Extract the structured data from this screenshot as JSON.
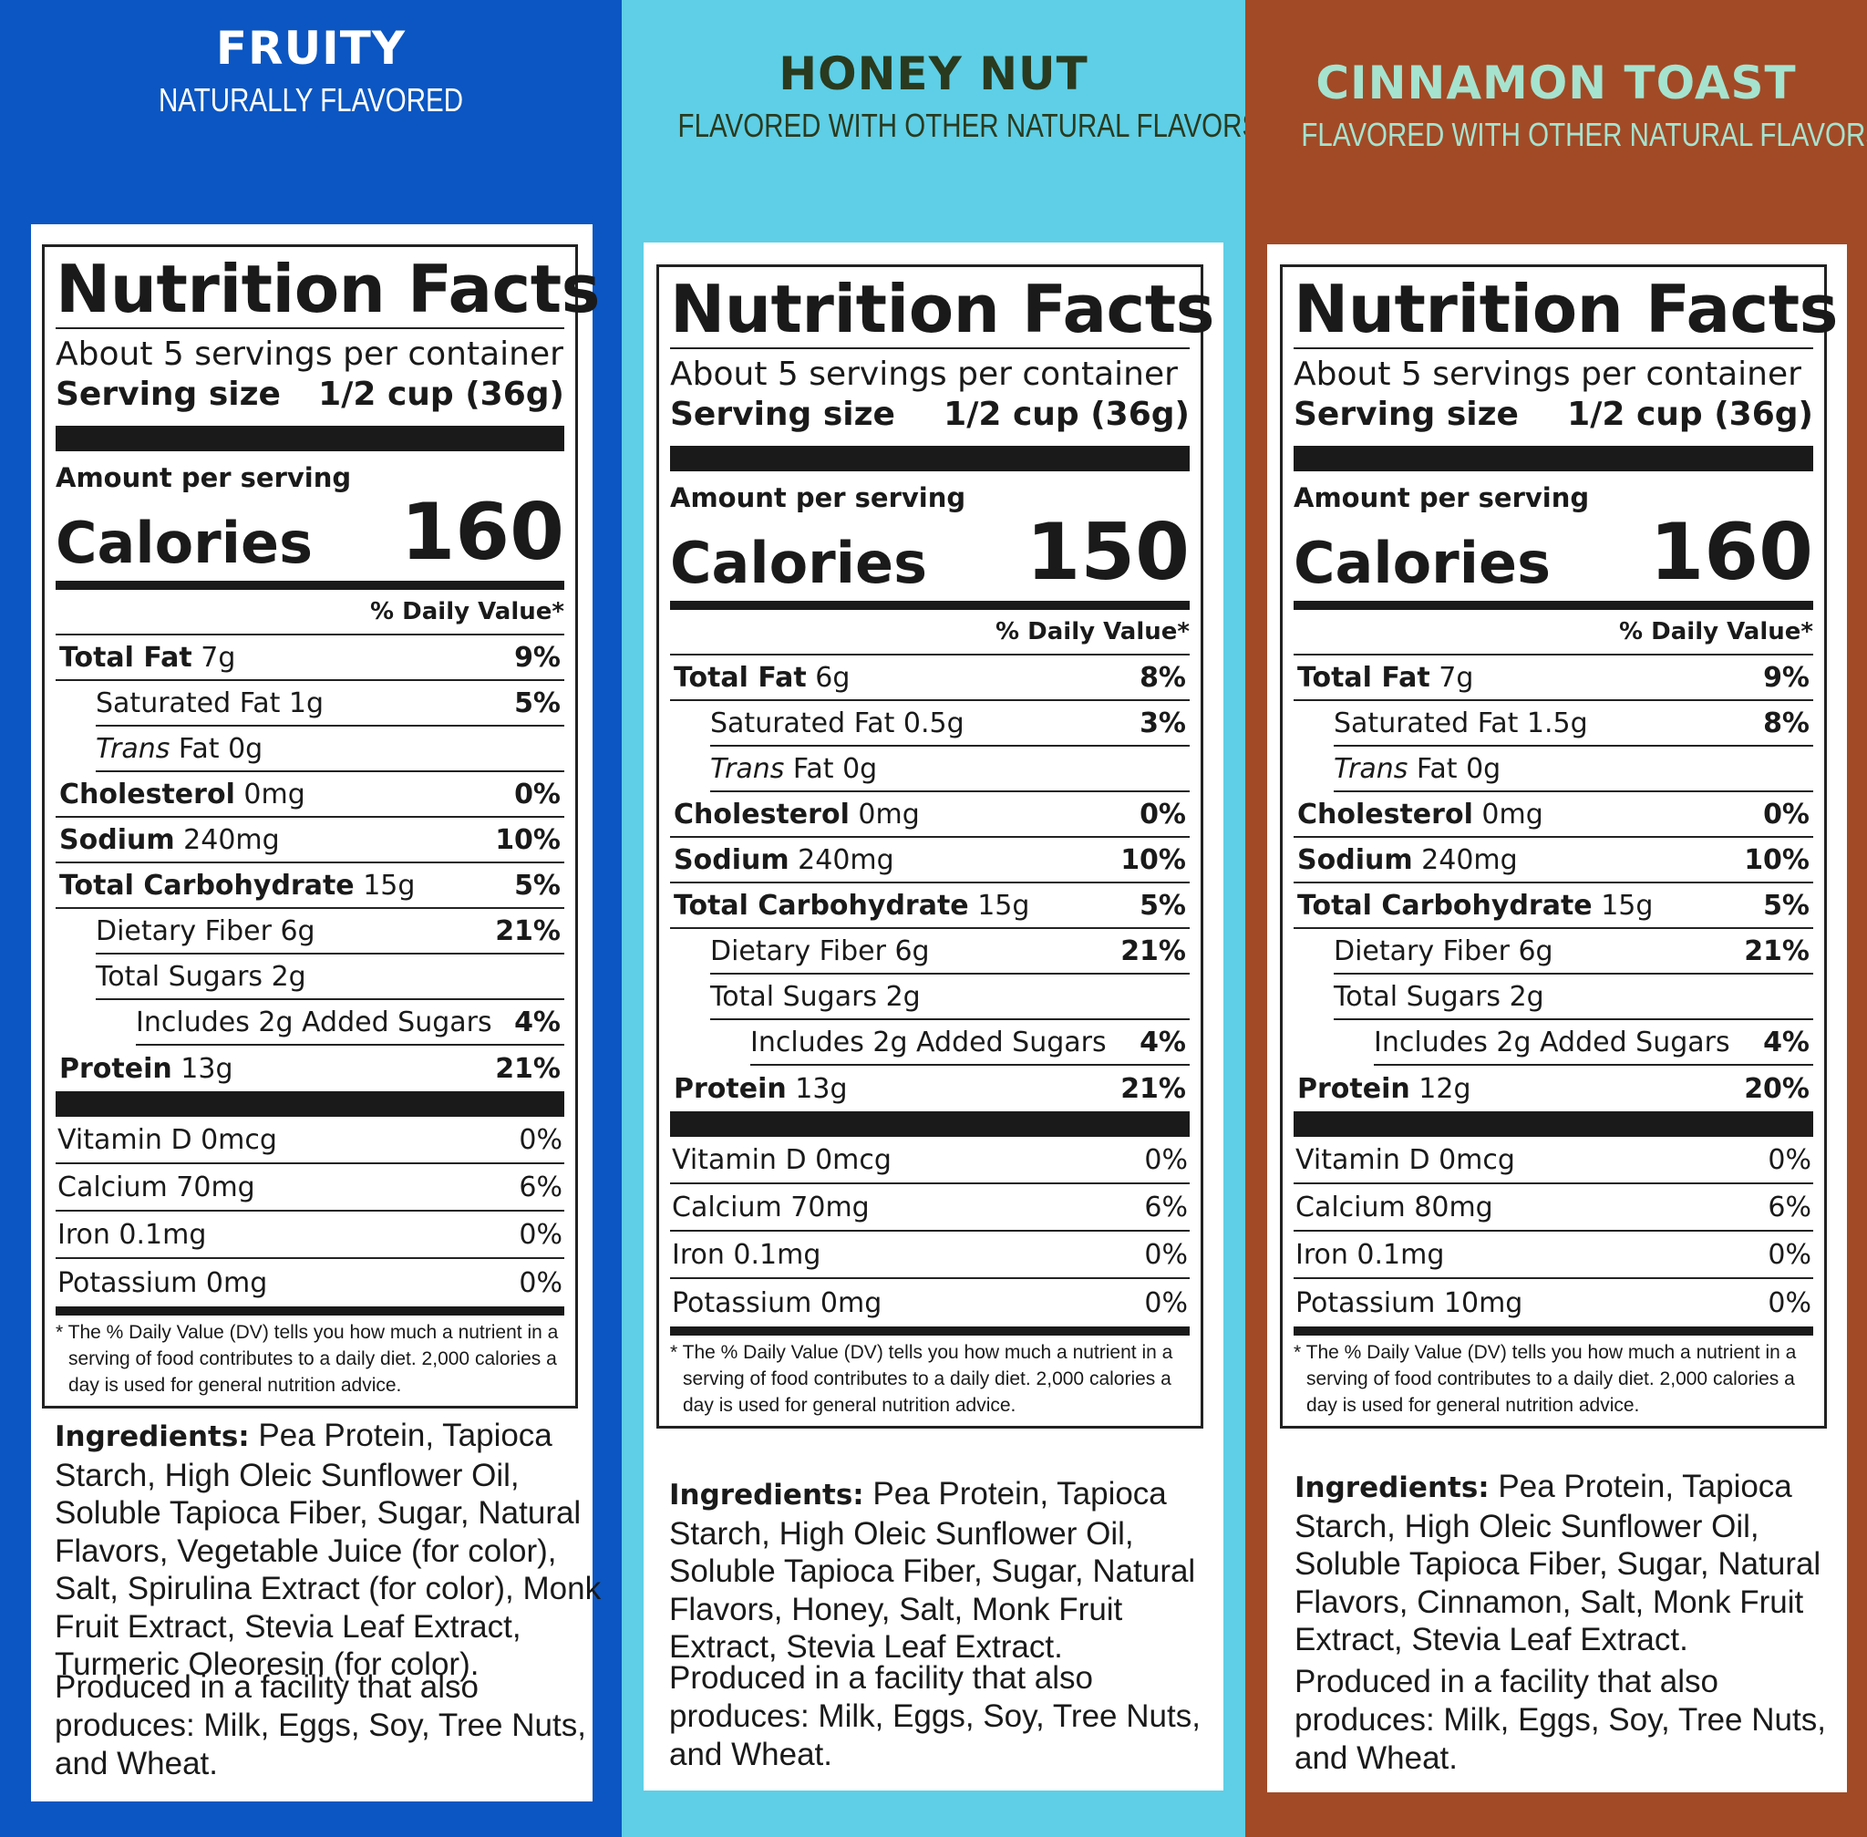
{
  "flavors": [
    {
      "name": "FRUITY",
      "subtitle": "NATURALLY FLAVORED",
      "bg_color": "#0B56C2",
      "name_color": "#FFFFFF",
      "sub_color": "#FFFFFF",
      "title": "Nutrition Facts",
      "servings": "About 5 servings per container",
      "serving_size_label": "Serving size",
      "serving_size_value": "1/2 cup (36g)",
      "amount_per_serving": "Amount per serving",
      "calories_label": "Calories",
      "calories": "160",
      "dv_header": "% Daily Value*",
      "total_fat": {
        "label": "Total Fat",
        "amount": "7g",
        "dv": "9%"
      },
      "sat_fat": {
        "label": "Saturated Fat 1g",
        "dv": "5%"
      },
      "trans_fat": {
        "italic": "Trans",
        "label": "Fat 0g"
      },
      "cholesterol": {
        "label": "Cholesterol",
        "amount": "0mg",
        "dv": "0%"
      },
      "sodium": {
        "label": "Sodium",
        "amount": "240mg",
        "dv": "10%"
      },
      "carbs": {
        "label": "Total Carbohydrate",
        "amount": "15g",
        "dv": "5%"
      },
      "fiber": {
        "label": "Dietary Fiber 6g",
        "dv": "21%"
      },
      "sugars": {
        "label": "Total Sugars 2g"
      },
      "added_sugars": {
        "label": "Includes 2g Added Sugars",
        "dv": "4%"
      },
      "protein": {
        "label": "Protein",
        "amount": "13g",
        "dv": "21%"
      },
      "vitamin_d": {
        "label": "Vitamin D 0mcg",
        "dv": "0%"
      },
      "calcium": {
        "label": "Calcium 70mg",
        "dv": "6%"
      },
      "iron": {
        "label": "Iron 0.1mg",
        "dv": "0%"
      },
      "potassium": {
        "label": "Potassium 0mg",
        "dv": "0%"
      },
      "footnote": "* The % Daily Value (DV) tells you how much a nutrient in a serving of food contributes to a daily diet. 2,000 calories a day is used for general nutrition advice.",
      "ingredients_label": "Ingredients:",
      "ingredients": "Pea Protein, Tapioca Starch, High Oleic Sunflower Oil, Soluble Tapioca Fiber, Sugar, Natural Flavors, Vegetable Juice (for color), Salt, Spirulina Extract (for color), Monk Fruit Extract, Stevia Leaf Extract, Turmeric Oleoresin (for color).",
      "facility": "Produced in a facility that also produces: Milk, Eggs, Soy, Tree Nuts, and Wheat."
    },
    {
      "name": "HONEY NUT",
      "subtitle": "FLAVORED WITH OTHER NATURAL FLAVORS",
      "bg_color": "#5ECFE6",
      "name_color": "#2A3A1E",
      "sub_color": "#2A3A1E",
      "title": "Nutrition Facts",
      "servings": "About 5 servings per container",
      "serving_size_label": "Serving size",
      "serving_size_value": "1/2 cup (36g)",
      "amount_per_serving": "Amount per serving",
      "calories_label": "Calories",
      "calories": "150",
      "dv_header": "% Daily Value*",
      "total_fat": {
        "label": "Total Fat",
        "amount": "6g",
        "dv": "8%"
      },
      "sat_fat": {
        "label": "Saturated Fat 0.5g",
        "dv": "3%"
      },
      "trans_fat": {
        "italic": "Trans",
        "label": "Fat 0g"
      },
      "cholesterol": {
        "label": "Cholesterol",
        "amount": "0mg",
        "dv": "0%"
      },
      "sodium": {
        "label": "Sodium",
        "amount": "240mg",
        "dv": "10%"
      },
      "carbs": {
        "label": "Total Carbohydrate",
        "amount": "15g",
        "dv": "5%"
      },
      "fiber": {
        "label": "Dietary Fiber 6g",
        "dv": "21%"
      },
      "sugars": {
        "label": "Total Sugars 2g"
      },
      "added_sugars": {
        "label": "Includes 2g Added Sugars",
        "dv": "4%"
      },
      "protein": {
        "label": "Protein",
        "amount": "13g",
        "dv": "21%"
      },
      "vitamin_d": {
        "label": "Vitamin D 0mcg",
        "dv": "0%"
      },
      "calcium": {
        "label": "Calcium 70mg",
        "dv": "6%"
      },
      "iron": {
        "label": "Iron 0.1mg",
        "dv": "0%"
      },
      "potassium": {
        "label": "Potassium 0mg",
        "dv": "0%"
      },
      "footnote": "* The % Daily Value (DV) tells you how much a nutrient in a serving of food contributes to a daily diet. 2,000 calories a day is used for general nutrition advice.",
      "ingredients_label": "Ingredients:",
      "ingredients": "Pea Protein, Tapioca Starch, High Oleic Sunflower Oil, Soluble Tapioca Fiber, Sugar, Natural Flavors, Honey, Salt, Monk Fruit Extract, Stevia Leaf Extract.",
      "facility": "Produced in a facility that also produces: Milk, Eggs, Soy, Tree Nuts, and Wheat."
    },
    {
      "name": "CINNAMON TOAST",
      "subtitle": "FLAVORED WITH OTHER NATURAL FLAVORS",
      "bg_color": "#A24A26",
      "name_color": "#A6E3CF",
      "sub_color": "#A6E3CF",
      "title": "Nutrition Facts",
      "servings": "About 5 servings per container",
      "serving_size_label": "Serving size",
      "serving_size_value": "1/2 cup (36g)",
      "amount_per_serving": "Amount per serving",
      "calories_label": "Calories",
      "calories": "160",
      "dv_header": "% Daily Value*",
      "total_fat": {
        "label": "Total Fat",
        "amount": "7g",
        "dv": "9%"
      },
      "sat_fat": {
        "label": "Saturated Fat 1.5g",
        "dv": "8%"
      },
      "trans_fat": {
        "italic": "Trans",
        "label": "Fat 0g"
      },
      "cholesterol": {
        "label": "Cholesterol",
        "amount": "0mg",
        "dv": "0%"
      },
      "sodium": {
        "label": "Sodium",
        "amount": "240mg",
        "dv": "10%"
      },
      "carbs": {
        "label": "Total Carbohydrate",
        "amount": "15g",
        "dv": "5%"
      },
      "fiber": {
        "label": "Dietary Fiber 6g",
        "dv": "21%"
      },
      "sugars": {
        "label": "Total Sugars 2g"
      },
      "added_sugars": {
        "label": "Includes 2g Added Sugars",
        "dv": "4%"
      },
      "protein": {
        "label": "Protein",
        "amount": "12g",
        "dv": "20%"
      },
      "vitamin_d": {
        "label": "Vitamin D 0mcg",
        "dv": "0%"
      },
      "calcium": {
        "label": "Calcium 80mg",
        "dv": "6%"
      },
      "iron": {
        "label": "Iron 0.1mg",
        "dv": "0%"
      },
      "potassium": {
        "label": "Potassium 10mg",
        "dv": "0%"
      },
      "footnote": "* The % Daily Value (DV) tells you how much a nutrient in a serving of food contributes to a daily diet. 2,000 calories a day is used for general nutrition advice.",
      "ingredients_label": "Ingredients:",
      "ingredients": "Pea Protein, Tapioca Starch, High Oleic Sunflower Oil, Soluble Tapioca Fiber, Sugar, Natural Flavors, Cinnamon, Salt, Monk Fruit Extract, Stevia Leaf Extract.",
      "facility": "Produced in a facility that also produces: Milk, Eggs, Soy, Tree Nuts, and Wheat."
    }
  ]
}
